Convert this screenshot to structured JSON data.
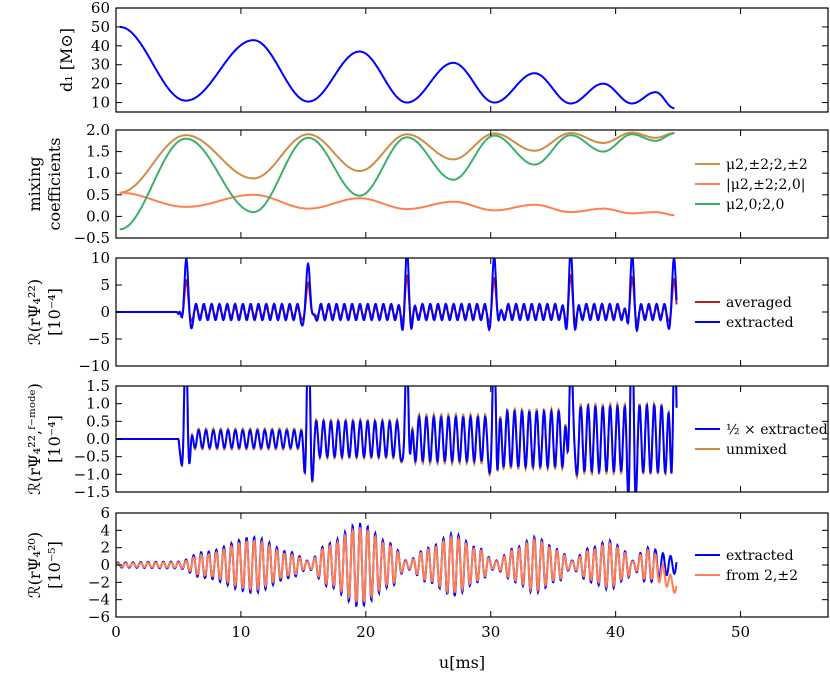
{
  "chart_data": [
    {
      "type": "line",
      "id": "d1",
      "ylabel": "d₁ [M⊙]",
      "ylim": [
        5,
        60
      ],
      "yticks": [
        "10",
        "20",
        "30",
        "40",
        "50",
        "60"
      ],
      "yticks_num": [
        10,
        20,
        30,
        40,
        50,
        60
      ],
      "series": [
        {
          "name": "d1",
          "color": "#0000ff",
          "x": [
            0.3,
            5.6,
            11,
            15.4,
            19.5,
            23.3,
            27,
            30.3,
            33.5,
            36.4,
            39,
            41.3,
            43.2,
            44.7
          ],
          "y": [
            50,
            11,
            43,
            10.5,
            37,
            10,
            31,
            10,
            25.5,
            9.5,
            20,
            9.5,
            15.5,
            7
          ]
        }
      ]
    },
    {
      "type": "line",
      "id": "mixing",
      "ylabel": "mixing coefficients",
      "ylim": [
        -0.5,
        2.0
      ],
      "yticks": [
        "−0.5",
        "0.0",
        "0.5",
        "1.0",
        "1.5",
        "2.0"
      ],
      "yticks_num": [
        -0.5,
        0.0,
        0.5,
        1.0,
        1.5,
        2.0
      ],
      "series": [
        {
          "name": "μ2,±2;2,±2",
          "color": "#d08c45",
          "x": [
            0.3,
            5.6,
            11,
            15.4,
            19.5,
            23.3,
            27,
            30.3,
            33.5,
            36.4,
            39,
            41.3,
            43.2,
            44.7
          ],
          "y": [
            0.55,
            1.88,
            0.88,
            1.9,
            1.05,
            1.9,
            1.32,
            1.92,
            1.52,
            1.93,
            1.7,
            1.94,
            1.82,
            1.93
          ]
        },
        {
          "name": "|μ2,±2;2,0|",
          "color": "#ff7f50",
          "x": [
            0.3,
            5.6,
            11,
            15.4,
            19.5,
            23.3,
            27,
            30.3,
            33.5,
            36.4,
            39,
            41.3,
            43.2,
            44.7
          ],
          "y": [
            0.55,
            0.22,
            0.5,
            0.18,
            0.42,
            0.17,
            0.34,
            0.14,
            0.27,
            0.1,
            0.18,
            0.07,
            0.1,
            0.03
          ]
        },
        {
          "name": "μ2,0;2,0",
          "color": "#3cb06b",
          "x": [
            0.3,
            5.6,
            11,
            15.4,
            19.5,
            23.3,
            27,
            30.3,
            33.5,
            36.4,
            39,
            41.3,
            43.2,
            44.7
          ],
          "y": [
            -0.3,
            1.8,
            0.1,
            1.82,
            0.48,
            1.83,
            0.85,
            1.87,
            1.2,
            1.88,
            1.5,
            1.9,
            1.75,
            1.92
          ]
        }
      ]
    },
    {
      "type": "line",
      "id": "psi22",
      "ylabel": "ℛ(rΨ₄²²)",
      "yunit": "[10⁻⁴]",
      "ylim": [
        -10,
        10
      ],
      "yticks": [
        "−10",
        "−5",
        "0",
        "5",
        "10"
      ],
      "yticks_num": [
        -10,
        -5,
        0,
        5,
        10
      ],
      "series": [
        {
          "name": "averaged",
          "color": "#b22222",
          "bursts": [
            5.6,
            15.4,
            23.3,
            30.3,
            36.4,
            41.3,
            44.7
          ],
          "spike": 6,
          "ring": 0.8,
          "osc_freq": 1.6
        },
        {
          "name": "extracted",
          "color": "#0000ff",
          "bursts": [
            5.6,
            15.4,
            23.3,
            30.3,
            36.4,
            41.3,
            44.7
          ],
          "spike": 10,
          "ring": 1.5,
          "osc_freq": 1.6
        }
      ]
    },
    {
      "type": "line",
      "id": "psi22f",
      "ylabel": "ℛ(rΨ₄²²,ᶠ⁻ᵐᵒᵈᵉ)",
      "yunit": "[10⁻⁴]",
      "ylim": [
        -1.5,
        1.5
      ],
      "yticks": [
        "−1.5",
        "−1.0",
        "−0.5",
        "0.0",
        "0.5",
        "1.0",
        "1.5"
      ],
      "yticks_num": [
        -1.5,
        -1.0,
        -0.5,
        0.0,
        0.5,
        1.0,
        1.5
      ],
      "series": [
        {
          "name": "unmixed",
          "color": "#d08c45",
          "bursts": [
            5.6,
            15.4,
            23.3,
            30.3,
            36.4,
            41.3,
            44.7
          ],
          "amp": [
            0.3,
            0.55,
            0.7,
            0.85,
            1.0,
            1.0,
            0.7
          ],
          "osc_freq": 1.7
        },
        {
          "name": "½ × extracted",
          "color": "#0000ff",
          "bursts": [
            5.6,
            15.4,
            23.3,
            30.3,
            36.4,
            41.3,
            44.7
          ],
          "amp": [
            0.25,
            0.5,
            0.62,
            0.78,
            0.92,
            0.95,
            0.65
          ],
          "osc_freq": 1.7
        }
      ]
    },
    {
      "type": "line",
      "id": "psi20",
      "ylabel": "ℛ(rΨ₄²⁰)",
      "yunit": "[10⁻⁵]",
      "ylim": [
        -6,
        6
      ],
      "yticks": [
        "−6",
        "−4",
        "−2",
        "0",
        "2",
        "4",
        "6"
      ],
      "yticks_num": [
        -6,
        -4,
        -2,
        0,
        2,
        4,
        6
      ],
      "xlabel": "u[ms]",
      "xticks": [
        "0",
        "10",
        "20",
        "30",
        "40",
        "50"
      ],
      "xticks_num": [
        0,
        10,
        20,
        30,
        40,
        50
      ],
      "xlim": [
        0,
        57
      ],
      "series": [
        {
          "name": "extracted",
          "color": "#0000ff",
          "envelope_x": [
            0,
            5,
            7,
            11,
            14,
            15.4,
            17,
            19.5,
            22,
            23.3,
            25,
            27,
            29,
            30.3,
            32,
            33.5,
            35.5,
            36.4,
            38,
            39.5,
            41,
            41.3,
            42.5,
            44.7
          ],
          "envelope_y": [
            0.3,
            0.4,
            1.5,
            3.2,
            1.5,
            0.5,
            2.5,
            4.8,
            2.5,
            0.5,
            2,
            3.6,
            2,
            0.5,
            2,
            3.2,
            1.8,
            0.5,
            2,
            2.8,
            1.5,
            0.5,
            2,
            1
          ],
          "osc_freq": 1.65
        },
        {
          "name": "from 2,±2",
          "color": "#ff7f50",
          "envelope_x": [
            0,
            5,
            7,
            11,
            14,
            15.4,
            17,
            19.5,
            22,
            23.3,
            25,
            27,
            29,
            30.3,
            32,
            33.5,
            35.5,
            36.4,
            38,
            39.5,
            41,
            41.3,
            42.5,
            44.7
          ],
          "envelope_y": [
            0.2,
            0.3,
            1.2,
            2.8,
            1.2,
            0.4,
            2.2,
            4.3,
            2.2,
            0.4,
            1.8,
            3.2,
            1.8,
            0.4,
            1.8,
            2.9,
            1.6,
            0.4,
            1.7,
            2.5,
            1.3,
            0.4,
            1.7,
            0.8
          ],
          "osc_freq": 1.65,
          "drift": -2.4
        }
      ]
    }
  ],
  "legends": {
    "mixing": [
      "μ2,±2;2,±2",
      "|μ2,±2;2,0|",
      "μ2,0;2,0"
    ],
    "psi22": [
      "averaged",
      "extracted"
    ],
    "psi22f": [
      "½ × extracted",
      "unmixed"
    ],
    "psi20": [
      "extracted",
      "from 2,±2"
    ]
  }
}
